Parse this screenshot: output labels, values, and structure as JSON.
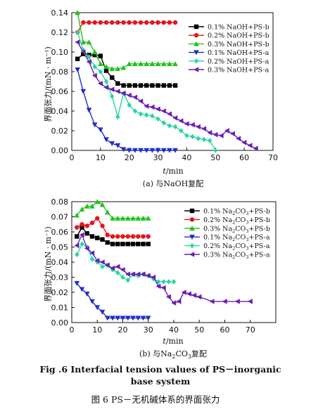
{
  "figure": {
    "caption_en": "Fig .6    Interfacial tension values of PS－inorganic base system",
    "caption_en_line1": "Fig .6    Interfacial tension values of PS－inorganic",
    "caption_en_line2": "base system",
    "caption_cn": "图 6   PS－无机碱体系的界面张力"
  },
  "chart_data": [
    {
      "type": "line",
      "subcaption": "(a) 与NaOH复配",
      "xlabel_var": "t",
      "xlabel_unit": "/min",
      "ylabel": "界面张力/(mN · m⁻¹)",
      "xlim": [
        0,
        70
      ],
      "ylim": [
        0,
        0.14
      ],
      "xticks": [
        0,
        10,
        20,
        30,
        40,
        50,
        60,
        70
      ],
      "yticks": [
        "0.00",
        "0.02",
        "0.04",
        "0.06",
        "0.08",
        "0.10",
        "0.12",
        "0.14"
      ],
      "legend_position": "top-right",
      "series": [
        {
          "name": "0.1% NaOH+PS-b",
          "color": "#000000",
          "marker": "square",
          "x": [
            2,
            4,
            6,
            8,
            10,
            12,
            14,
            16,
            18,
            20,
            22,
            24,
            26,
            28,
            30,
            32,
            34,
            36
          ],
          "y": [
            0.093,
            0.098,
            0.097,
            0.097,
            0.096,
            0.081,
            0.074,
            0.068,
            0.066,
            0.066,
            0.066,
            0.066,
            0.066,
            0.066,
            0.066,
            0.066,
            0.066,
            0.066
          ]
        },
        {
          "name": "0.2% NaOH+PS-b",
          "color": "#e8141b",
          "marker": "circle",
          "x": [
            2,
            4,
            6,
            8,
            10,
            12,
            14,
            16,
            18,
            20,
            22,
            24,
            26,
            28,
            30,
            32,
            34,
            36
          ],
          "y": [
            0.12,
            0.13,
            0.13,
            0.13,
            0.13,
            0.13,
            0.13,
            0.13,
            0.13,
            0.13,
            0.13,
            0.13,
            0.13,
            0.13,
            0.13,
            0.13,
            0.13,
            0.13
          ]
        },
        {
          "name": "0.3% NaOH+PS-b",
          "color": "#22c21e",
          "marker": "triangle-up",
          "x": [
            2,
            4,
            6,
            8,
            10,
            12,
            14,
            16,
            18,
            20,
            22,
            24,
            26,
            28,
            30,
            32,
            34,
            36
          ],
          "y": [
            0.14,
            0.11,
            0.11,
            0.1,
            0.088,
            0.085,
            0.083,
            0.083,
            0.084,
            0.088,
            0.088,
            0.088,
            0.088,
            0.088,
            0.088,
            0.088,
            0.088,
            0.088
          ]
        },
        {
          "name": "0.1% NaOH+PS-a",
          "color": "#1f2fc8",
          "marker": "triangle-down",
          "x": [
            2,
            4,
            6,
            8,
            10,
            12,
            14,
            16,
            18,
            20,
            22,
            24,
            26,
            28,
            30,
            32,
            34,
            36
          ],
          "y": [
            0.082,
            0.06,
            0.041,
            0.026,
            0.021,
            0.011,
            0.007,
            0.005,
            0.001,
            0.0,
            0.0,
            0.0,
            0.0,
            0.0,
            0.0,
            0.0,
            0.0,
            0.0
          ]
        },
        {
          "name": "0.2% NaOH+PS-a",
          "color": "#28d6a0",
          "marker": "diamond",
          "x": [
            2,
            4,
            6,
            8,
            10,
            12,
            14,
            16,
            18,
            20,
            22,
            24,
            26,
            28,
            30,
            32,
            34,
            36,
            38,
            40,
            42,
            44,
            46,
            48,
            50
          ],
          "y": [
            0.12,
            0.102,
            0.095,
            0.085,
            0.08,
            0.07,
            0.055,
            0.034,
            0.058,
            0.046,
            0.04,
            0.037,
            0.036,
            0.035,
            0.032,
            0.028,
            0.025,
            0.024,
            0.02,
            0.015,
            0.014,
            0.012,
            0.011,
            0.01,
            0.0
          ]
        },
        {
          "name": "0.3% NaOH+PS-a",
          "color": "#6a1fb8",
          "marker": "triangle-left",
          "x": [
            2,
            4,
            6,
            8,
            10,
            12,
            14,
            16,
            18,
            20,
            22,
            24,
            26,
            28,
            30,
            32,
            34,
            36,
            38,
            40,
            42,
            44,
            46,
            48,
            50,
            52,
            54,
            56,
            58,
            60,
            62,
            64
          ],
          "y": [
            0.11,
            0.1,
            0.09,
            0.076,
            0.068,
            0.064,
            0.062,
            0.06,
            0.058,
            0.056,
            0.054,
            0.05,
            0.045,
            0.044,
            0.042,
            0.04,
            0.037,
            0.033,
            0.03,
            0.027,
            0.026,
            0.024,
            0.022,
            0.018,
            0.016,
            0.015,
            0.02,
            0.017,
            0.012,
            0.008,
            0.005,
            0.002
          ]
        }
      ]
    },
    {
      "type": "line",
      "subcaption_pre": "(b) 与Na",
      "subcaption_sub1": "2",
      "subcaption_mid": "CO",
      "subcaption_sub2": "3",
      "subcaption_post": "复配",
      "xlabel_var": "t",
      "xlabel_unit": "/min",
      "ylabel": "界面张力/(mN · m⁻¹)",
      "xlim": [
        0,
        80
      ],
      "ylim": [
        0,
        0.08
      ],
      "xticks": [
        0,
        10,
        20,
        30,
        40,
        50,
        60,
        70
      ],
      "yticks": [
        "0.00",
        "0.01",
        "0.02",
        "0.03",
        "0.04",
        "0.05",
        "0.06",
        "0.07",
        "0.08"
      ],
      "legend_position": "top-right",
      "series": [
        {
          "name": "0.1% Na2CO3+PS-b",
          "name_pre": "0.1% Na",
          "name_mid": "CO",
          "name_post": "+PS-b",
          "color": "#000000",
          "marker": "square",
          "x": [
            2,
            4,
            6,
            8,
            10,
            12,
            14,
            16,
            18,
            20,
            22,
            24,
            26,
            28,
            30
          ],
          "y": [
            0.057,
            0.063,
            0.059,
            0.057,
            0.056,
            0.055,
            0.053,
            0.052,
            0.052,
            0.052,
            0.052,
            0.052,
            0.052,
            0.052,
            0.052
          ]
        },
        {
          "name": "0.2% Na2CO3+PS-b",
          "name_pre": "0.2% Na",
          "name_mid": "CO",
          "name_post": "+PS-b",
          "color": "#e8141b",
          "marker": "circle",
          "x": [
            2,
            4,
            6,
            8,
            10,
            12,
            14,
            16,
            18,
            20,
            22,
            24,
            26,
            28,
            30
          ],
          "y": [
            0.063,
            0.065,
            0.064,
            0.066,
            0.069,
            0.064,
            0.058,
            0.057,
            0.057,
            0.057,
            0.057,
            0.057,
            0.057,
            0.057,
            0.057
          ]
        },
        {
          "name": "0.3% Na2CO3+PS-b",
          "name_pre": "0.3% Na",
          "name_mid": "CO",
          "name_post": "+PS-b",
          "color": "#22c21e",
          "marker": "triangle-up",
          "x": [
            2,
            4,
            6,
            8,
            10,
            12,
            14,
            16,
            18,
            20,
            22,
            24,
            26,
            28,
            30
          ],
          "y": [
            0.071,
            0.075,
            0.077,
            0.077,
            0.08,
            0.078,
            0.073,
            0.069,
            0.069,
            0.069,
            0.069,
            0.069,
            0.069,
            0.069,
            0.069
          ]
        },
        {
          "name": "0.1% Na2CO3+PS-a",
          "name_pre": "0.1% Na",
          "name_mid": "CO",
          "name_post": "+PS-a",
          "color": "#1f2fc8",
          "marker": "triangle-down",
          "x": [
            2,
            4,
            6,
            8,
            10,
            12,
            14,
            16,
            18,
            20,
            22,
            24,
            26,
            28,
            30
          ],
          "y": [
            0.026,
            0.022,
            0.019,
            0.014,
            0.01,
            0.007,
            0.003,
            0.003,
            0.003,
            0.003,
            0.003,
            0.003,
            0.003,
            0.003,
            0.003
          ]
        },
        {
          "name": "0.2% Na2CO3+PS-a",
          "name_pre": "0.2% Na",
          "name_mid": "CO",
          "name_post": "+PS-a",
          "color": "#28d6a0",
          "marker": "diamond",
          "x": [
            2,
            4,
            6,
            8,
            10,
            12,
            14,
            16,
            18,
            20,
            22,
            24,
            26,
            28,
            30,
            32,
            34,
            36,
            38,
            40
          ],
          "y": [
            0.045,
            0.052,
            0.05,
            0.042,
            0.04,
            0.037,
            0.038,
            0.035,
            0.033,
            0.03,
            0.028,
            0.032,
            0.031,
            0.032,
            0.031,
            0.029,
            0.027,
            0.027,
            0.027,
            0.027
          ]
        },
        {
          "name": "0.3% Na2CO3+PS-a",
          "name_pre": "0.3% Na",
          "name_mid": "CO",
          "name_post": "+PS-a",
          "color": "#6a1fb8",
          "marker": "triangle-left",
          "x": [
            2,
            4,
            6,
            8,
            10,
            12,
            14,
            16,
            18,
            20,
            22,
            24,
            26,
            28,
            30,
            32,
            34,
            36,
            38,
            40,
            42,
            44,
            46,
            48,
            50,
            55,
            60,
            65,
            70
          ],
          "y": [
            0.051,
            0.058,
            0.049,
            0.046,
            0.041,
            0.04,
            0.038,
            0.036,
            0.037,
            0.035,
            0.032,
            0.032,
            0.032,
            0.032,
            0.031,
            0.03,
            0.024,
            0.023,
            0.017,
            0.013,
            0.014,
            0.02,
            0.019,
            0.018,
            0.017,
            0.014,
            0.014,
            0.014,
            0.014
          ]
        }
      ]
    }
  ]
}
